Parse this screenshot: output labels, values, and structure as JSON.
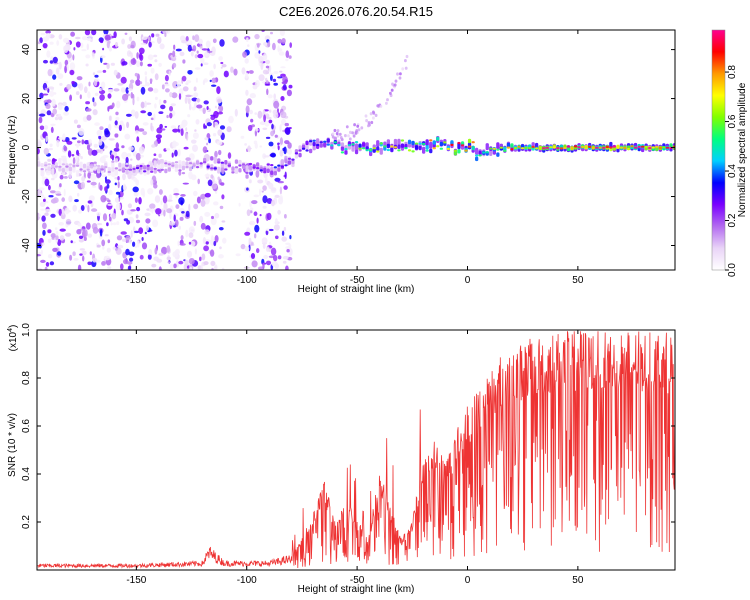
{
  "title": "C2E6.2026.076.20.54.R15",
  "chart_data": [
    {
      "type": "heatmap",
      "xlabel": "Height of straight line (km)",
      "ylabel": "Frequency (Hz)",
      "xlim": [
        -195,
        94
      ],
      "ylim": [
        -50,
        48
      ],
      "xticks": [
        -150,
        -100,
        -50,
        0,
        50
      ],
      "xtick_labels": [
        "-150",
        "-100",
        "-50",
        "0",
        "50"
      ],
      "yticks": [
        -40,
        -20,
        0,
        20,
        40
      ],
      "ytick_labels": [
        "-40",
        "-20",
        "0",
        "20",
        "40"
      ],
      "colorbar": {
        "label": "Normalized spectral amplitude",
        "range": [
          0,
          0.97
        ],
        "ticks": [
          0.0,
          0.2,
          0.4,
          0.6,
          0.8
        ],
        "tick_labels": [
          "0.0",
          "0.2",
          "0.4",
          "0.6",
          "0.8"
        ],
        "colormap": [
          "#ffffff",
          "#e9d4f7",
          "#b36bf0",
          "#7a00ff",
          "#0000ff",
          "#00d0ff",
          "#00ff80",
          "#80ff00",
          "#ffff00",
          "#ff9900",
          "#ff0000",
          "#ff0090"
        ]
      },
      "ridge": [
        {
          "x": -195,
          "y": -8,
          "amp": 0.12
        },
        {
          "x": -160,
          "y": -8,
          "amp": 0.15
        },
        {
          "x": -150,
          "y": -9,
          "amp": 0.25
        },
        {
          "x": -140,
          "y": -8,
          "amp": 0.18
        },
        {
          "x": -125,
          "y": -7,
          "amp": 0.15
        },
        {
          "x": -117,
          "y": -7,
          "amp": 0.28
        },
        {
          "x": -105,
          "y": -8,
          "amp": 0.22
        },
        {
          "x": -95,
          "y": -8,
          "amp": 0.32
        },
        {
          "x": -88,
          "y": -9,
          "amp": 0.3
        },
        {
          "x": -80,
          "y": -5,
          "amp": 0.25
        },
        {
          "x": -72,
          "y": 1,
          "amp": 0.35
        },
        {
          "x": -65,
          "y": 2,
          "amp": 0.42
        },
        {
          "x": -55,
          "y": 0,
          "amp": 0.45
        },
        {
          "x": -45,
          "y": 0,
          "amp": 0.55
        },
        {
          "x": -35,
          "y": 0,
          "amp": 0.6
        },
        {
          "x": -25,
          "y": 1,
          "amp": 0.55
        },
        {
          "x": -15,
          "y": 1,
          "amp": 0.7
        },
        {
          "x": -5,
          "y": 0,
          "amp": 0.75
        },
        {
          "x": 0,
          "y": 0,
          "amp": 0.8
        },
        {
          "x": 5,
          "y": -3,
          "amp": 0.5
        },
        {
          "x": 10,
          "y": -1,
          "amp": 0.55
        },
        {
          "x": 20,
          "y": 0,
          "amp": 0.75
        },
        {
          "x": 40,
          "y": 0,
          "amp": 0.85
        },
        {
          "x": 60,
          "y": 0,
          "amp": 0.9
        },
        {
          "x": 80,
          "y": 0,
          "amp": 0.85
        },
        {
          "x": 94,
          "y": 0,
          "amp": 0.8
        }
      ],
      "speckle_region": {
        "x": [
          -195,
          -80
        ],
        "y": [
          -50,
          48
        ]
      }
    },
    {
      "type": "line",
      "xlabel": "Height of straight line (km)",
      "ylabel": "SNR (10 * v/v)",
      "y_multiplier": "(x10",
      "y_multiplier_exp": "4",
      "y_multiplier_close": ")",
      "xlim": [
        -195,
        94
      ],
      "ylim": [
        0,
        1.0
      ],
      "xticks": [
        -150,
        -100,
        -50,
        0,
        50
      ],
      "xtick_labels": [
        "-150",
        "-100",
        "-50",
        "0",
        "50"
      ],
      "yticks": [
        0.2,
        0.4,
        0.6,
        0.8,
        1.0
      ],
      "ytick_labels": [
        "0.2",
        "0.4",
        "0.6",
        "0.8",
        "1.0"
      ],
      "series": [
        {
          "name": "SNR",
          "color": "#ee3333",
          "x": [
            -195,
            -150,
            -120,
            -117,
            -110,
            -90,
            -80,
            -75,
            -70,
            -65,
            -60,
            -55,
            -50,
            -45,
            -40,
            -35,
            -30,
            -25,
            -20,
            -15,
            -10,
            -5,
            0,
            5,
            10,
            15,
            20,
            25,
            30,
            40,
            50,
            60,
            70,
            80,
            90,
            94
          ],
          "y": [
            0.02,
            0.02,
            0.03,
            0.08,
            0.03,
            0.03,
            0.05,
            0.12,
            0.22,
            0.35,
            0.2,
            0.28,
            0.2,
            0.12,
            0.38,
            0.26,
            0.12,
            0.2,
            0.46,
            0.5,
            0.42,
            0.55,
            0.65,
            0.7,
            0.78,
            0.84,
            0.86,
            0.88,
            0.9,
            0.92,
            0.93,
            0.93,
            0.93,
            0.92,
            0.92,
            0.91
          ]
        }
      ]
    }
  ]
}
